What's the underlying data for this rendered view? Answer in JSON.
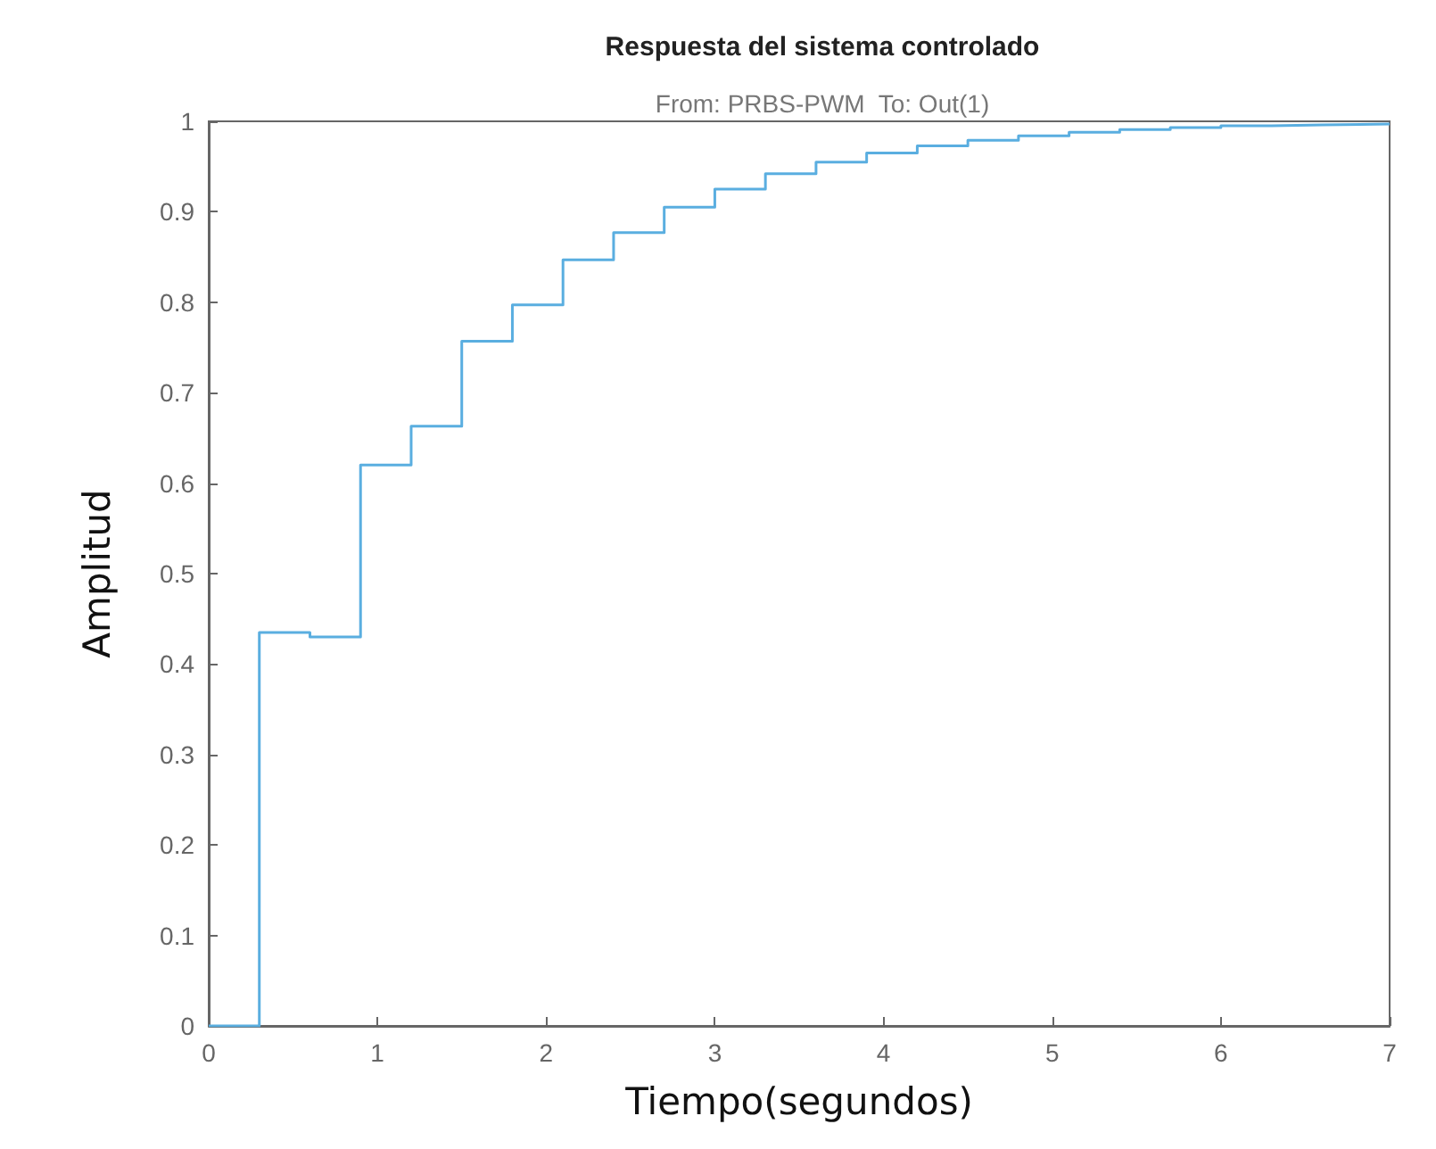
{
  "chart_data": {
    "type": "step",
    "title": "Respuesta del sistema controlado",
    "subtitle": "From: PRBS-PWM  To: Out(1)",
    "xlabel": "Tiempo(segundos)",
    "ylabel": "Amplitud",
    "x": [
      0,
      0.3,
      0.6,
      0.9,
      1.2,
      1.5,
      1.8,
      2.1,
      2.4,
      2.7,
      3.0,
      3.3,
      3.6,
      3.9,
      4.2,
      4.5,
      4.8,
      5.1,
      5.4,
      5.7,
      6.0,
      6.3,
      6.6,
      7.0
    ],
    "series": [
      {
        "color": "#5aaee0",
        "values": [
          0,
          0.435,
          0.43,
          0.62,
          0.663,
          0.757,
          0.797,
          0.847,
          0.877,
          0.905,
          0.925,
          0.942,
          0.955,
          0.965,
          0.973,
          0.979,
          0.984,
          0.988,
          0.991,
          0.993,
          0.995,
          0.996,
          0.997,
          0.997
        ]
      }
    ],
    "xlim": [
      0,
      7
    ],
    "xticks": [
      0,
      1,
      2,
      3,
      4,
      5,
      6,
      7
    ],
    "ylim": [
      0,
      1
    ],
    "yticks": [
      0,
      0.1,
      0.2,
      0.3,
      0.4,
      0.5,
      0.6,
      0.7,
      0.8,
      0.9,
      1
    ],
    "grid": false,
    "marker": "none",
    "line_style": "solid"
  }
}
